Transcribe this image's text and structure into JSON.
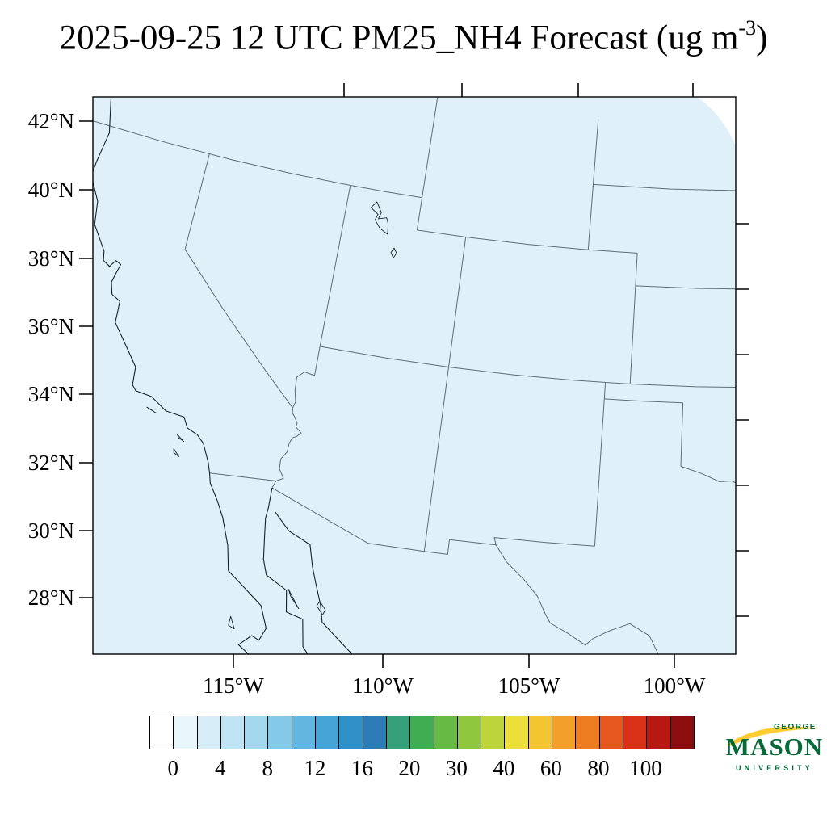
{
  "title": {
    "prefix": "2025-09-25 12 UTC PM25_NH4 Forecast (ug m",
    "exponent": "-3",
    "suffix": ")"
  },
  "map": {
    "fill_color": "#dff0f8",
    "border_line_color": "#5c6e7a",
    "coast_line_color": "#14242e",
    "lat_labels": [
      "42°N",
      "40°N",
      "38°N",
      "36°N",
      "34°N",
      "32°N",
      "30°N",
      "28°N"
    ],
    "lon_labels": [
      "115°W",
      "110°W",
      "105°W",
      "100°W"
    ]
  },
  "colorbar": {
    "tick_labels": [
      "0",
      "4",
      "8",
      "12",
      "16",
      "20",
      "30",
      "40",
      "60",
      "80",
      "100"
    ],
    "colors": [
      "#ffffff",
      "#e9f6fb",
      "#d7eef8",
      "#bfe5f4",
      "#a3d8ee",
      "#84c9e7",
      "#62b6df",
      "#45a3d5",
      "#3090c8",
      "#2e7cb5",
      "#35a07a",
      "#3fae52",
      "#67bb45",
      "#8fc83f",
      "#bdd43b",
      "#ecdf3a",
      "#f3c531",
      "#f2a029",
      "#ee7d21",
      "#e6571d",
      "#d93118",
      "#b81812",
      "#8c0d0d"
    ]
  },
  "logo": {
    "george": "GEORGE",
    "mason": "MASON",
    "university": "UNIVERSITY",
    "green": "#046a38",
    "gold": "#ffcc33"
  },
  "chart_data": {
    "type": "heatmap",
    "title": "2025-09-25 12 UTC PM25_NH4 Forecast (ug m-3)",
    "variable": "PM25_NH4",
    "units": "ug m-3",
    "forecast_time": "2025-09-25 12 UTC",
    "x_axis": {
      "tick_labels": [
        "115°W",
        "110°W",
        "105°W",
        "100°W"
      ]
    },
    "y_axis": {
      "tick_labels": [
        "42°N",
        "40°N",
        "38°N",
        "36°N",
        "34°N",
        "32°N",
        "30°N",
        "28°N"
      ]
    },
    "colorbar_levels": [
      0,
      4,
      8,
      12,
      16,
      20,
      30,
      40,
      60,
      80,
      100
    ],
    "values_summary": "entire mapped domain sits at the lowest color level (approximately 0 ug m-3)"
  }
}
